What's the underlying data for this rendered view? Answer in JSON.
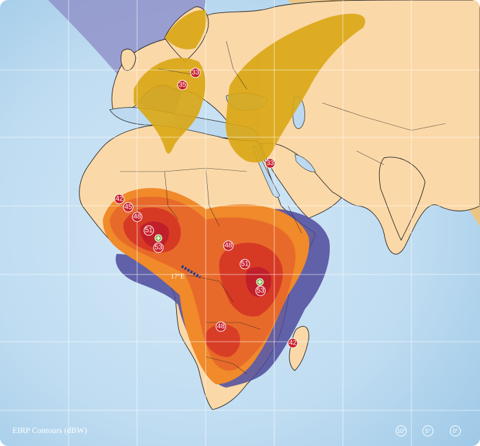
{
  "title": "EIRP Contours (dBW)",
  "satellite_label": "17°E",
  "elevation_marks": [
    "10°",
    "5°",
    "0°"
  ],
  "contour_labels": [
    "33",
    "35",
    "33",
    "42",
    "45",
    "48",
    "51",
    "53",
    "48",
    "51",
    "53",
    "48",
    "42"
  ],
  "colors": {
    "ocean_outer": "#a9cfe9",
    "ocean_inner": "#c7e1f3",
    "land": "#fbd8a8",
    "grid": "#ffffff",
    "europe_beam": "#d9a714",
    "north_beam": "#7b78b8",
    "east_beam": "#f5b240",
    "africa_outer": "#f08a2a",
    "africa_mid": "#e86a2a",
    "africa_core": "#d63a25",
    "africa_spot": "#c11f2a",
    "blue_contour": "#4d4a9b"
  }
}
